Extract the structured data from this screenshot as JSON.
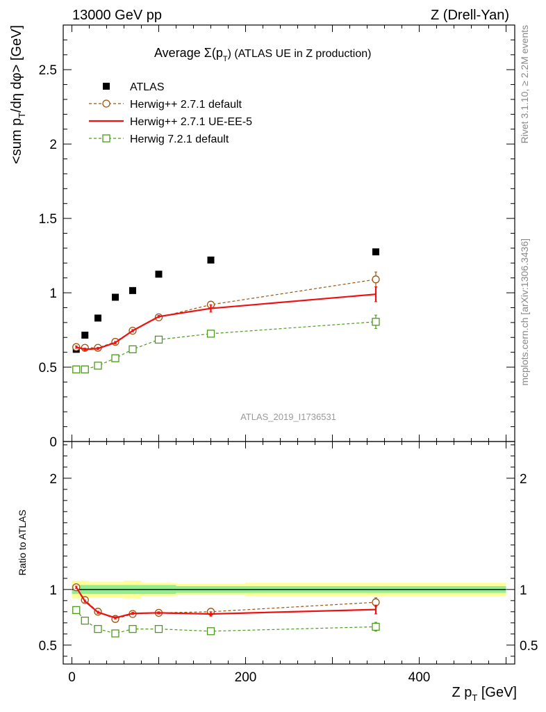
{
  "header": {
    "left": "13000 GeV pp",
    "right": "Z (Drell-Yan)"
  },
  "side": {
    "rivet": "Rivet 3.1.10, ≥ 2.2M events",
    "mcplots": "mcplots.cern.ch [arXiv:1306.3436]"
  },
  "chart_data": [
    {
      "type": "scatter",
      "title": "Average Σ(p_T) (ATLAS UE in Z production)",
      "title_parts": {
        "main": "Average ",
        "sigma": "Σ(p",
        "sub": "T",
        "tail": ") (ATLAS UE in Z production)"
      },
      "ylabel": "<sum p_T/dη dφ> [GeV]",
      "ylabel_parts": {
        "a": "<sum p",
        "sub": "T",
        "b": "/dη dφ> [GeV]"
      },
      "xlim": [
        -10,
        510
      ],
      "ylim": [
        0,
        2.8
      ],
      "yticks": [
        0,
        0.5,
        1,
        1.5,
        2,
        2.5
      ],
      "ytick_labels": [
        "0",
        "0.5",
        "1",
        "1.5",
        "2",
        "2.5"
      ],
      "watermark": "ATLAS_2019_I1736531",
      "legend_position": "top-left",
      "x": [
        5,
        15,
        30,
        50,
        70,
        100,
        160,
        350
      ],
      "series": [
        {
          "name": "ATLAS",
          "style": "data",
          "color": "#000000",
          "values": [
            0.62,
            0.715,
            0.83,
            0.97,
            1.015,
            1.125,
            1.22,
            1.275
          ]
        },
        {
          "name": "Herwig++ 2.7.1 default",
          "style": "circle-dashed",
          "color": "#a0520a",
          "values": [
            0.635,
            0.63,
            0.63,
            0.67,
            0.745,
            0.835,
            0.92,
            1.09
          ],
          "errors": [
            0.008,
            0.008,
            0.008,
            0.008,
            0.008,
            0.008,
            0.01,
            0.05
          ]
        },
        {
          "name": "Herwig++ 2.7.1 UE-EE-5",
          "style": "line-solid",
          "color": "#ee1111",
          "values": [
            0.635,
            0.62,
            0.625,
            0.665,
            0.745,
            0.84,
            0.895,
            0.99
          ],
          "errors": [
            0.008,
            0.008,
            0.008,
            0.008,
            0.008,
            0.008,
            0.025,
            0.05
          ]
        },
        {
          "name": "Herwig 7.2.1 default",
          "style": "square-dashed",
          "color": "#4a9a1a",
          "values": [
            0.485,
            0.485,
            0.51,
            0.56,
            0.62,
            0.685,
            0.725,
            0.805
          ],
          "errors": [
            0.008,
            0.008,
            0.008,
            0.008,
            0.008,
            0.008,
            0.01,
            0.045
          ]
        }
      ]
    },
    {
      "type": "scatter",
      "ylabel": "Ratio to ATLAS",
      "xlabel": "Z p_T [GeV]",
      "xlabel_parts": {
        "a": "Z p",
        "sub": "T",
        "b": " [GeV]"
      },
      "xlim": [
        -10,
        510
      ],
      "ylim": [
        0.33,
        2.33
      ],
      "yticks": [
        0.5,
        1,
        2
      ],
      "ytick_labels": [
        "0.5",
        "1",
        "2"
      ],
      "xticks": [
        0,
        200,
        400
      ],
      "xtick_labels": [
        "0",
        "200",
        "400"
      ],
      "band_edges": [
        0,
        10,
        20,
        40,
        60,
        80,
        120,
        200,
        500
      ],
      "band_inner": [
        0.04,
        0.04,
        0.04,
        0.04,
        0.04,
        0.04,
        0.03,
        0.03
      ],
      "band_outer": [
        0.08,
        0.08,
        0.07,
        0.07,
        0.08,
        0.06,
        0.05,
        0.06
      ],
      "band_colors": {
        "inner": "#90ee90",
        "outer": "#ffff99"
      },
      "x": [
        5,
        15,
        30,
        50,
        70,
        100,
        160,
        350
      ],
      "series": [
        {
          "name": "Herwig++ 2.7.1 default",
          "style": "circle-dashed",
          "color": "#a0520a",
          "values": [
            1.02,
            0.905,
            0.8,
            0.735,
            0.78,
            0.79,
            0.8,
            0.885
          ],
          "errors": [
            0.01,
            0.01,
            0.01,
            0.01,
            0.01,
            0.01,
            0.01,
            0.04
          ]
        },
        {
          "name": "Herwig++ 2.7.1 UE-EE-5",
          "style": "line-solid",
          "color": "#ee1111",
          "values": [
            1.02,
            0.895,
            0.795,
            0.745,
            0.785,
            0.79,
            0.78,
            0.82
          ],
          "errors": [
            0.01,
            0.01,
            0.01,
            0.01,
            0.01,
            0.01,
            0.02,
            0.04
          ]
        },
        {
          "name": "Herwig 7.2.1 default",
          "style": "square-dashed",
          "color": "#4a9a1a",
          "values": [
            0.815,
            0.72,
            0.645,
            0.605,
            0.645,
            0.645,
            0.625,
            0.665
          ],
          "errors": [
            0.01,
            0.01,
            0.01,
            0.01,
            0.01,
            0.01,
            0.01,
            0.04
          ]
        }
      ]
    }
  ]
}
